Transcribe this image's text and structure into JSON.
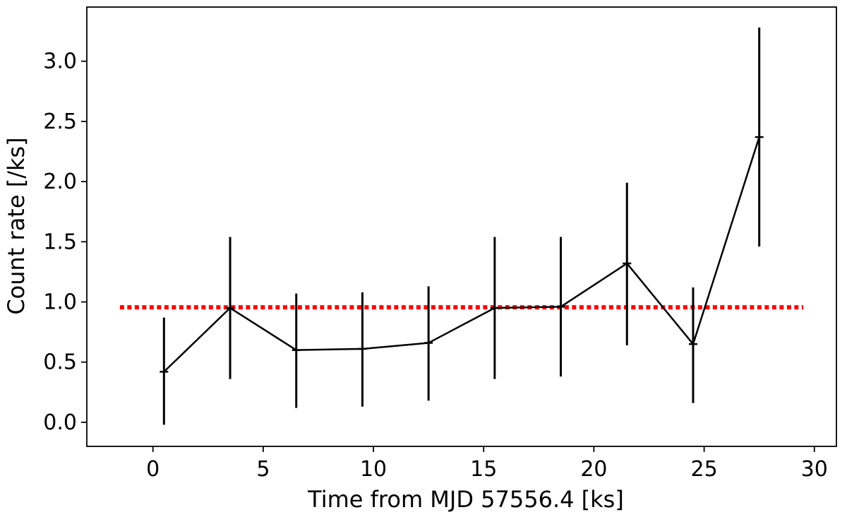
{
  "chart_data": {
    "type": "line",
    "title": "",
    "xlabel": "Time from MJD 57556.4 [ks]",
    "ylabel": "Count rate [/ks]",
    "xlim": [
      -3,
      31
    ],
    "ylim": [
      -0.2,
      3.45
    ],
    "xticks": [
      0,
      5,
      10,
      15,
      20,
      25,
      30
    ],
    "yticks": [
      0.0,
      0.5,
      1.0,
      1.5,
      2.0,
      2.5,
      3.0
    ],
    "xtick_labels": [
      "0",
      "5",
      "10",
      "15",
      "20",
      "25",
      "30"
    ],
    "ytick_labels": [
      "0.0",
      "0.5",
      "1.0",
      "1.5",
      "2.0",
      "2.5",
      "3.0"
    ],
    "grid": false,
    "series": [
      {
        "color": "#000000",
        "x": [
          0.5,
          3.5,
          6.5,
          9.5,
          12.5,
          15.5,
          18.5,
          21.5,
          24.5,
          27.5
        ],
        "y": [
          0.42,
          0.95,
          0.6,
          0.61,
          0.66,
          0.95,
          0.96,
          1.32,
          0.65,
          2.37
        ],
        "yerr_low": [
          -0.02,
          0.36,
          0.12,
          0.13,
          0.18,
          0.36,
          0.38,
          0.64,
          0.16,
          1.46
        ],
        "yerr_high": [
          0.87,
          1.54,
          1.07,
          1.08,
          1.13,
          1.54,
          1.54,
          1.99,
          1.12,
          3.28
        ]
      }
    ],
    "reference_line": {
      "y": 0.955,
      "x_start": -1.5,
      "x_end": 29.5,
      "color": "#ff0000",
      "style": "dotted"
    }
  }
}
